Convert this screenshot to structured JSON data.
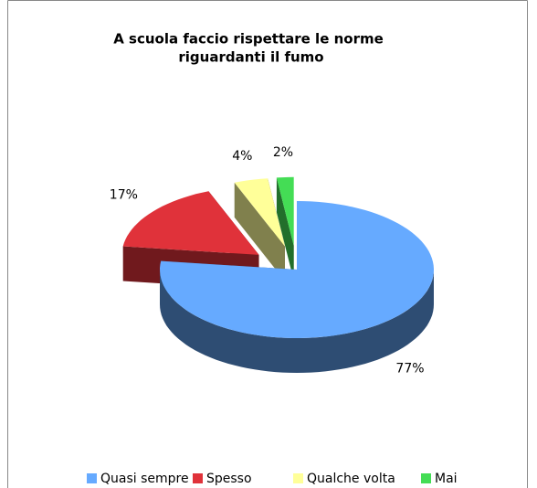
{
  "chart_data": {
    "type": "pie3d",
    "title": [
      "A scuola faccio rispettare le norme",
      "riguardanti il fumo"
    ],
    "categories": [
      "Quasi sempre",
      "Spesso",
      "Qualche volta",
      "Mai"
    ],
    "values": [
      77,
      17,
      4,
      2
    ],
    "value_labels": [
      "77%",
      "17%",
      "4%",
      "2%"
    ],
    "colors": [
      "#66aaff",
      "#e0323a",
      "#ffff99",
      "#44dd55"
    ],
    "legend": "bottom"
  }
}
